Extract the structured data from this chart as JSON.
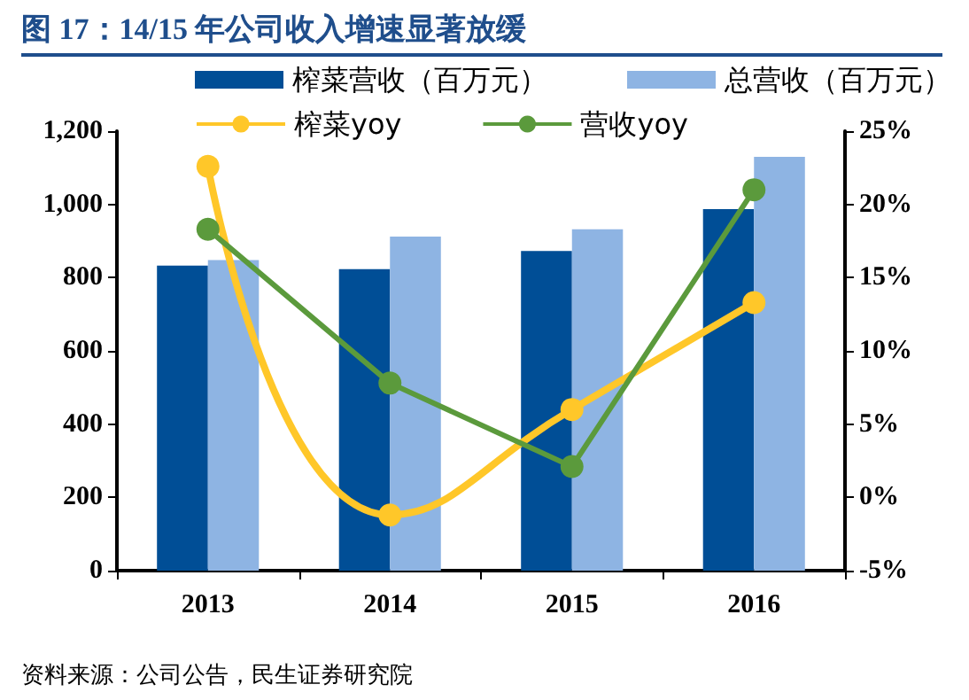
{
  "chart_data": {
    "type": "bar",
    "title": "图 17：14/15 年公司收入增速显著放缓",
    "categories": [
      "2013",
      "2014",
      "2015",
      "2016"
    ],
    "series": [
      {
        "name": "榨菜营收（百万元）",
        "color": "#004e96",
        "values": [
          833,
          823,
          873,
          987
        ]
      },
      {
        "name": "总营收（百万元）",
        "color": "#8eb4e3",
        "values": [
          848,
          912,
          932,
          1130
        ]
      },
      {
        "name": "榨菜yoy",
        "type": "line",
        "axis": "y2",
        "color": "#ffc729",
        "values": [
          22.6,
          -1.2,
          6.0,
          13.3
        ]
      },
      {
        "name": "营收yoy",
        "type": "line",
        "axis": "y2",
        "color": "#5b9a3c",
        "values": [
          18.3,
          7.8,
          2.1,
          21.0
        ]
      }
    ],
    "ylim": [
      0,
      1200
    ],
    "yticks": [
      {
        "value": 0,
        "label": "0"
      },
      {
        "value": 200,
        "label": "200"
      },
      {
        "value": 400,
        "label": "400"
      },
      {
        "value": 600,
        "label": "600"
      },
      {
        "value": 800,
        "label": "800"
      },
      {
        "value": 1000,
        "label": "1,000"
      },
      {
        "value": 1200,
        "label": "1,200"
      }
    ],
    "y2lim": [
      -5,
      25
    ],
    "y2ticks": [
      {
        "value": -5,
        "label": "-5%"
      },
      {
        "value": 0,
        "label": "0%"
      },
      {
        "value": 5,
        "label": "5%"
      },
      {
        "value": 10,
        "label": "10%"
      },
      {
        "value": 15,
        "label": "15%"
      },
      {
        "value": 20,
        "label": "20%"
      },
      {
        "value": 25,
        "label": "25%"
      }
    ],
    "marker": "circle",
    "legend": "top",
    "grid": false,
    "annotations": [
      "资料来源：公司公告，民生证券研究院"
    ]
  }
}
